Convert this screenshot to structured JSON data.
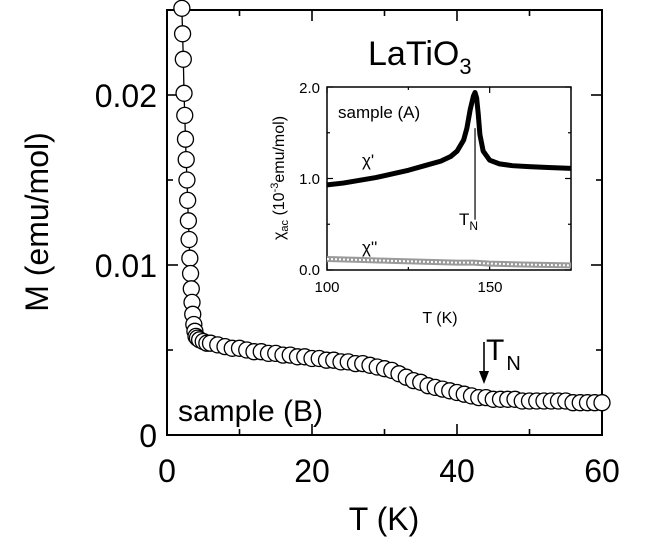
{
  "chart_data": [
    {
      "type": "scatter",
      "title": "LaTiO",
      "title_subscript": "3",
      "xlabel": "T (K)",
      "ylabel": "M (emu/mol)",
      "xlim": [
        0,
        60
      ],
      "ylim": [
        0,
        0.025
      ],
      "x_ticks": [
        "0",
        "20",
        "40",
        "60"
      ],
      "y_ticks": [
        "0",
        "0.01",
        "0.02"
      ],
      "grid": false,
      "annotations": [
        {
          "text": "sample (B)"
        },
        {
          "text": "T",
          "subscript": "N",
          "arrow_x": 43.7
        }
      ],
      "series": [
        {
          "marker": "open-circle",
          "line": "connected",
          "points": [
            [
              2.05,
              0.0251
            ],
            [
              2.15,
              0.0236
            ],
            [
              2.25,
              0.0221
            ],
            [
              2.35,
              0.0201
            ],
            [
              2.45,
              0.0188
            ],
            [
              2.55,
              0.0174
            ],
            [
              2.65,
              0.0162
            ],
            [
              2.75,
              0.015
            ],
            [
              2.85,
              0.0138
            ],
            [
              2.95,
              0.0126
            ],
            [
              3.05,
              0.0115
            ],
            [
              3.15,
              0.0104
            ],
            [
              3.25,
              0.0095
            ],
            [
              3.35,
              0.0086
            ],
            [
              3.45,
              0.0078
            ],
            [
              3.55,
              0.0071
            ],
            [
              3.7,
              0.0065
            ],
            [
              3.85,
              0.0061
            ],
            [
              4.0,
              0.0058
            ],
            [
              4.2,
              0.0057
            ],
            [
              4.5,
              0.0056
            ],
            [
              5,
              0.0055
            ],
            [
              5.5,
              0.0054
            ],
            [
              6,
              0.0054
            ],
            [
              7,
              0.0053
            ],
            [
              8,
              0.0052
            ],
            [
              9,
              0.0051
            ],
            [
              10,
              0.0051
            ],
            [
              11,
              0.005
            ],
            [
              12,
              0.0049
            ],
            [
              13,
              0.0049
            ],
            [
              14,
              0.0048
            ],
            [
              15,
              0.0048
            ],
            [
              16,
              0.0047
            ],
            [
              17,
              0.0047
            ],
            [
              18,
              0.0046
            ],
            [
              19,
              0.0046
            ],
            [
              20,
              0.0045
            ],
            [
              21,
              0.0045
            ],
            [
              22,
              0.0044
            ],
            [
              23,
              0.0044
            ],
            [
              24,
              0.0043
            ],
            [
              25,
              0.0043
            ],
            [
              26,
              0.0042
            ],
            [
              27,
              0.0042
            ],
            [
              28,
              0.0041
            ],
            [
              29,
              0.004
            ],
            [
              30,
              0.0039
            ],
            [
              31,
              0.0038
            ],
            [
              32,
              0.0036
            ],
            [
              33,
              0.0034
            ],
            [
              34,
              0.0032
            ],
            [
              35,
              0.0031
            ],
            [
              36,
              0.0029
            ],
            [
              37,
              0.0028
            ],
            [
              38,
              0.0027
            ],
            [
              39,
              0.0026
            ],
            [
              40,
              0.0025
            ],
            [
              41,
              0.0024
            ],
            [
              42,
              0.0023
            ],
            [
              43,
              0.0022
            ],
            [
              44,
              0.0022
            ],
            [
              45,
              0.0021
            ],
            [
              46,
              0.0021
            ],
            [
              47,
              0.0021
            ],
            [
              48,
              0.0021
            ],
            [
              49,
              0.002
            ],
            [
              50,
              0.002
            ],
            [
              51,
              0.002
            ],
            [
              52,
              0.002
            ],
            [
              53,
              0.002
            ],
            [
              54,
              0.002
            ],
            [
              55,
              0.002
            ],
            [
              56,
              0.0019
            ],
            [
              57,
              0.0019
            ],
            [
              58,
              0.0019
            ],
            [
              59,
              0.0019
            ],
            [
              60,
              0.0019
            ]
          ]
        }
      ]
    },
    {
      "type": "line",
      "title": "sample (A)",
      "xlabel": "T (K)",
      "ylabel": "χ",
      "ylabel_subscript": "ac",
      "ylabel_rest": " (10",
      "ylabel_superscript": "-3",
      "ylabel_units": "emu/mol)",
      "xlim": [
        100,
        175
      ],
      "ylim": [
        0,
        2
      ],
      "x_ticks": [
        "100",
        "150"
      ],
      "y_ticks": [
        "0.0",
        "1.0",
        "2.0"
      ],
      "grid": false,
      "annotations": [
        {
          "text": "T",
          "subscript": "N",
          "marker_x": 145.5
        }
      ],
      "series": [
        {
          "name": "χ'",
          "style": "thick-black",
          "points": [
            [
              100,
              0.93
            ],
            [
              105,
              0.95
            ],
            [
              110,
              0.98
            ],
            [
              115,
              1.01
            ],
            [
              120,
              1.05
            ],
            [
              125,
              1.09
            ],
            [
              130,
              1.14
            ],
            [
              135,
              1.19
            ],
            [
              138,
              1.24
            ],
            [
              140,
              1.3
            ],
            [
              142,
              1.42
            ],
            [
              143,
              1.55
            ],
            [
              144,
              1.75
            ],
            [
              145,
              1.9
            ],
            [
              145.5,
              1.94
            ],
            [
              146,
              1.88
            ],
            [
              146.5,
              1.7
            ],
            [
              147,
              1.48
            ],
            [
              148,
              1.3
            ],
            [
              150,
              1.2
            ],
            [
              153,
              1.16
            ],
            [
              157,
              1.14
            ],
            [
              162,
              1.13
            ],
            [
              168,
              1.12
            ],
            [
              175,
              1.11
            ]
          ]
        },
        {
          "name": "χ''",
          "style": "gray-hatched",
          "points": [
            [
              100,
              0.12
            ],
            [
              110,
              0.11
            ],
            [
              120,
              0.1
            ],
            [
              130,
              0.09
            ],
            [
              140,
              0.08
            ],
            [
              145,
              0.08
            ],
            [
              150,
              0.07
            ],
            [
              160,
              0.06
            ],
            [
              175,
              0.05
            ]
          ]
        }
      ]
    }
  ]
}
